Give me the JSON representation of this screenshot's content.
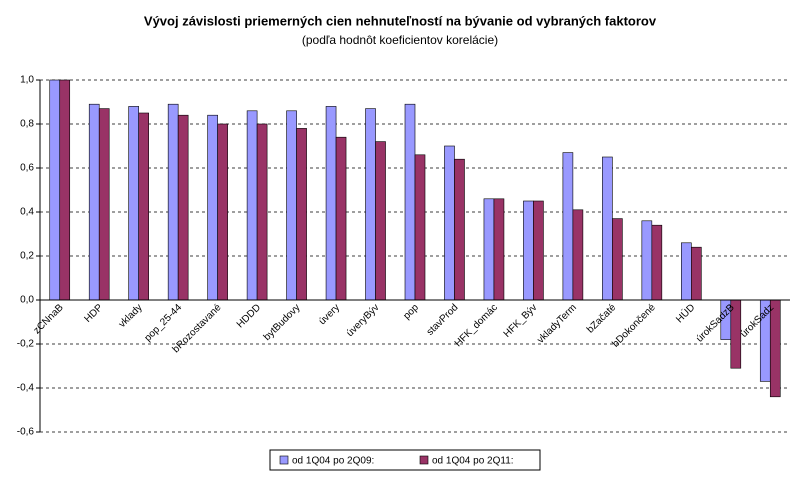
{
  "chart_data": {
    "type": "bar",
    "title": "Vývoj závislosti priemerných cien nehnuteľností na bývanie od vybraných faktorov",
    "subtitle": "(podľa hodnôt koeficientov korelácie)",
    "categories": [
      "zCNnaB",
      "HDP",
      "vklady",
      "pop_25-44",
      "bRozostavané",
      "HDDD",
      "bytBudovy",
      "úvery",
      "úveryBýv",
      "pop",
      "stavProd",
      "HFK_domác",
      "HFK_Býv",
      "vkladyTerm",
      "bZačaté",
      "bDokončené",
      "HÚD",
      "úrokSadzB",
      "úrokSadz"
    ],
    "series": [
      {
        "name": "od 1Q04 po 2Q09:",
        "color": "#9999ff",
        "values": [
          1.0,
          0.89,
          0.88,
          0.89,
          0.84,
          0.86,
          0.86,
          0.88,
          0.87,
          0.89,
          0.7,
          0.46,
          0.45,
          0.67,
          0.65,
          0.36,
          0.26,
          -0.18,
          -0.37
        ]
      },
      {
        "name": "od 1Q04 po 2Q11:",
        "color": "#993366",
        "values": [
          1.0,
          0.87,
          0.85,
          0.84,
          0.8,
          0.8,
          0.78,
          0.74,
          0.72,
          0.66,
          0.64,
          0.46,
          0.45,
          0.41,
          0.37,
          0.34,
          0.24,
          -0.31,
          -0.44
        ]
      }
    ],
    "ylim": [
      -0.6,
      1.0
    ],
    "yticks": [
      {
        "value": -0.6,
        "label": "-0,6"
      },
      {
        "value": -0.4,
        "label": "-0,4"
      },
      {
        "value": -0.2,
        "label": "-0,2"
      },
      {
        "value": 0,
        "label": "0,0"
      },
      {
        "value": 0.2,
        "label": "0,2"
      },
      {
        "value": 0.4,
        "label": "0,4"
      },
      {
        "value": 0.6,
        "label": "0,6"
      },
      {
        "value": 0.8,
        "label": "0,8"
      },
      {
        "value": 1.0,
        "label": "1,0"
      }
    ],
    "grid": true,
    "legend": "bottom"
  }
}
